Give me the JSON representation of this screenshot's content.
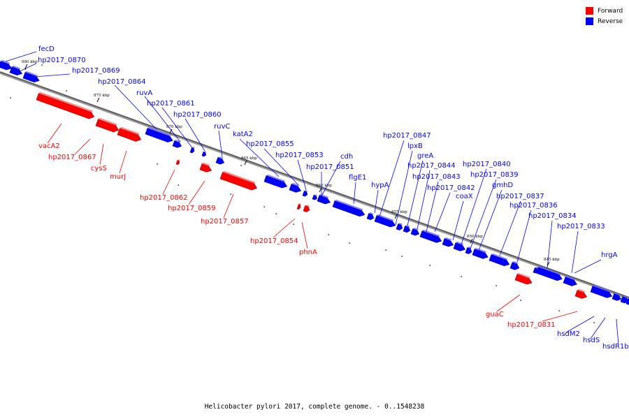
{
  "legend": {
    "forward_label": "Forward",
    "reverse_label": "Reverse",
    "forward_color": "#ff0000",
    "reverse_color": "#0000ff"
  },
  "caption": "Helicobacter pylori 2017, complete genome. - 0..1548238",
  "ticks": [
    {
      "label": "880 kbp"
    },
    {
      "label": "875 kbp"
    },
    {
      "label": "870 kbp"
    },
    {
      "label": "865 kbp"
    },
    {
      "label": "860 kbp"
    },
    {
      "label": "855 kbp"
    },
    {
      "label": "850 kbp"
    },
    {
      "label": "845 kbp"
    }
  ],
  "genes": [
    {
      "name": "fecD",
      "strand": "reverse"
    },
    {
      "name": "hp2017_0870",
      "strand": "reverse"
    },
    {
      "name": "hp2017_0869",
      "strand": "reverse"
    },
    {
      "name": "hp2017_0864",
      "strand": "reverse"
    },
    {
      "name": "ruvA",
      "strand": "reverse"
    },
    {
      "name": "hp2017_0861",
      "strand": "reverse"
    },
    {
      "name": "hp2017_0860",
      "strand": "reverse"
    },
    {
      "name": "ruvC",
      "strand": "reverse"
    },
    {
      "name": "katA2",
      "strand": "reverse"
    },
    {
      "name": "hp2017_0855",
      "strand": "reverse"
    },
    {
      "name": "hp2017_0853",
      "strand": "reverse"
    },
    {
      "name": "cdh",
      "strand": "reverse"
    },
    {
      "name": "hp2017_0851",
      "strand": "reverse"
    },
    {
      "name": "flgE1",
      "strand": "reverse"
    },
    {
      "name": "hypA",
      "strand": "reverse"
    },
    {
      "name": "hp2017_0847",
      "strand": "reverse"
    },
    {
      "name": "lpxB",
      "strand": "reverse"
    },
    {
      "name": "greA",
      "strand": "reverse"
    },
    {
      "name": "hp2017_0844",
      "strand": "reverse"
    },
    {
      "name": "hp2017_0843",
      "strand": "reverse"
    },
    {
      "name": "hp2017_0842",
      "strand": "reverse"
    },
    {
      "name": "coaX",
      "strand": "reverse"
    },
    {
      "name": "hp2017_0840",
      "strand": "reverse"
    },
    {
      "name": "hp2017_0839",
      "strand": "reverse"
    },
    {
      "name": "gmhD",
      "strand": "reverse"
    },
    {
      "name": "hp2017_0837",
      "strand": "reverse"
    },
    {
      "name": "hp2017_0836",
      "strand": "reverse"
    },
    {
      "name": "hp2017_0834",
      "strand": "reverse"
    },
    {
      "name": "hp2017_0833",
      "strand": "reverse"
    },
    {
      "name": "hrgA",
      "strand": "reverse"
    },
    {
      "name": "hsdM2",
      "strand": "reverse"
    },
    {
      "name": "hsdS",
      "strand": "reverse"
    },
    {
      "name": "hsdR1b",
      "strand": "reverse"
    },
    {
      "name": "vacA2",
      "strand": "forward"
    },
    {
      "name": "hp2017_0867",
      "strand": "forward"
    },
    {
      "name": "cysS",
      "strand": "forward"
    },
    {
      "name": "murJ",
      "strand": "forward"
    },
    {
      "name": "hp2017_0862",
      "strand": "forward"
    },
    {
      "name": "hp2017_0859",
      "strand": "forward"
    },
    {
      "name": "hp2017_0857",
      "strand": "forward"
    },
    {
      "name": "hp2017_0854",
      "strand": "forward"
    },
    {
      "name": "phnA",
      "strand": "forward"
    },
    {
      "name": "guaC",
      "strand": "forward"
    },
    {
      "name": "hp2017_0831",
      "strand": "forward"
    }
  ]
}
